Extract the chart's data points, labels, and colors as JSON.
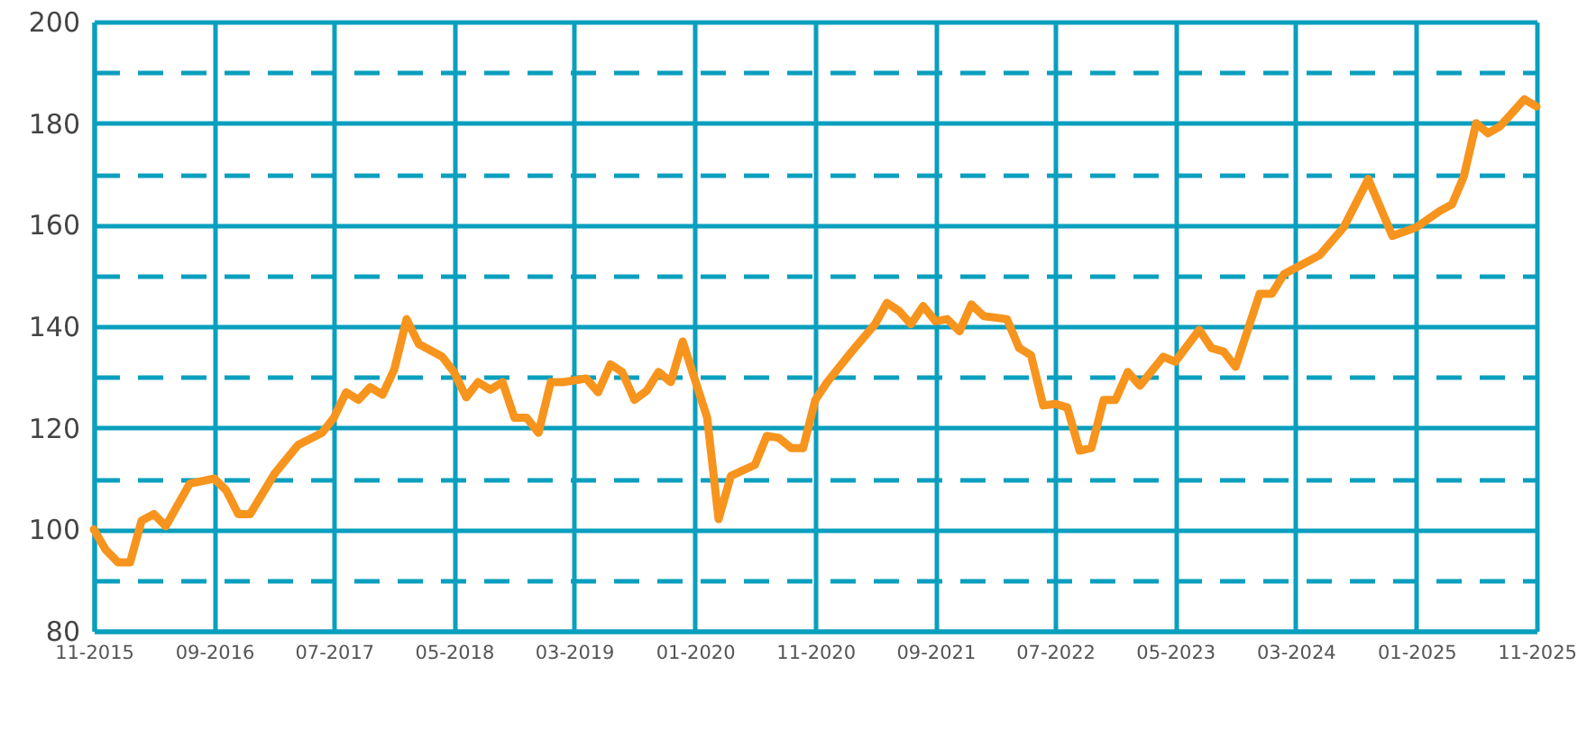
{
  "chart_data": {
    "type": "line",
    "x": [
      "2015-11",
      "2015-12",
      "2016-01",
      "2016-02",
      "2016-03",
      "2016-04",
      "2016-05",
      "2016-07",
      "2016-08",
      "2016-09",
      "2016-10",
      "2016-11",
      "2016-12",
      "2017-02",
      "2017-04",
      "2017-06",
      "2017-07",
      "2017-08",
      "2017-09",
      "2017-10",
      "2017-11",
      "2017-12",
      "2018-01",
      "2018-02",
      "2018-04",
      "2018-05",
      "2018-06",
      "2018-07",
      "2018-08",
      "2018-09",
      "2018-10",
      "2018-11",
      "2018-12",
      "2019-01",
      "2019-02",
      "2019-04",
      "2019-05",
      "2019-06",
      "2019-07",
      "2019-08",
      "2019-09",
      "2019-10",
      "2019-11",
      "2019-12",
      "2020-02",
      "2020-03",
      "2020-04",
      "2020-06",
      "2020-07",
      "2020-08",
      "2020-09",
      "2020-10",
      "2020-11",
      "2020-12",
      "2021-02",
      "2021-04",
      "2021-05",
      "2021-06",
      "2021-07",
      "2021-08",
      "2021-09",
      "2021-10",
      "2021-11",
      "2021-12",
      "2022-01",
      "2022-03",
      "2022-04",
      "2022-05",
      "2022-06",
      "2022-07",
      "2022-08",
      "2022-09",
      "2022-10",
      "2022-11",
      "2022-12",
      "2023-01",
      "2023-02",
      "2023-04",
      "2023-05",
      "2023-07",
      "2023-08",
      "2023-09",
      "2023-10",
      "2023-12",
      "2024-01",
      "2024-02",
      "2024-05",
      "2024-07",
      "2024-09",
      "2024-11",
      "2025-01",
      "2025-03",
      "2025-04",
      "2025-05",
      "2025-06",
      "2025-07",
      "2025-08",
      "2025-10",
      "2025-11"
    ],
    "series": [
      {
        "color": "#f7941d",
        "values": [
          100,
          96,
          93.5,
          93.5,
          101.7,
          103,
          100.6,
          109,
          109.5,
          110,
          107.7,
          103,
          103,
          111,
          116.6,
          119,
          122,
          127,
          125.5,
          128,
          126.5,
          131.5,
          141.4,
          136.5,
          134,
          131,
          126,
          129,
          127.5,
          129,
          122,
          122,
          119,
          129,
          129,
          129.7,
          127,
          132.5,
          131,
          125.5,
          127.3,
          131,
          129,
          137,
          122,
          102,
          110.5,
          112.7,
          118.4,
          118,
          116,
          116,
          125.5,
          129,
          135,
          140.4,
          144.6,
          143,
          140.4,
          144,
          141,
          141.4,
          139,
          144.3,
          142,
          141.4,
          135.7,
          134.3,
          124.4,
          124.7,
          124,
          115.5,
          116,
          125.5,
          125.5,
          131,
          128.3,
          134,
          133,
          139.3,
          135.7,
          135,
          132,
          146.4,
          146.4,
          150.3,
          154,
          159.5,
          169,
          157.8,
          159.5,
          162.7,
          164,
          169.5,
          180,
          178,
          179.4,
          184.7,
          183.3
        ]
      }
    ],
    "xlim": [
      "2015-11",
      "2025-11"
    ],
    "xticks": [
      {
        "value": "2015-11",
        "label": "11-2015"
      },
      {
        "value": "2016-09",
        "label": "09-2016"
      },
      {
        "value": "2017-07",
        "label": "07-2017"
      },
      {
        "value": "2018-05",
        "label": "05-2018"
      },
      {
        "value": "2019-03",
        "label": "03-2019"
      },
      {
        "value": "2020-01",
        "label": "01-2020"
      },
      {
        "value": "2020-11",
        "label": "11-2020"
      },
      {
        "value": "2021-09",
        "label": "09-2021"
      },
      {
        "value": "2022-07",
        "label": "07-2022"
      },
      {
        "value": "2023-05",
        "label": "05-2023"
      },
      {
        "value": "2024-03",
        "label": "03-2024"
      },
      {
        "value": "2025-01",
        "label": "01-2025"
      },
      {
        "value": "2025-11",
        "label": "11-2025"
      }
    ],
    "ylim": [
      80,
      200
    ],
    "yticks": [
      80,
      {
        "value": 90,
        "label": null
      },
      100,
      {
        "value": 110,
        "label": null
      },
      120,
      {
        "value": 130,
        "label": null
      },
      140,
      {
        "value": 150,
        "label": null
      },
      160,
      {
        "value": 170,
        "label": null
      },
      180,
      {
        "value": 190,
        "label": null
      },
      200
    ],
    "grid": true,
    "marker": "none",
    "line_style": "solid"
  }
}
